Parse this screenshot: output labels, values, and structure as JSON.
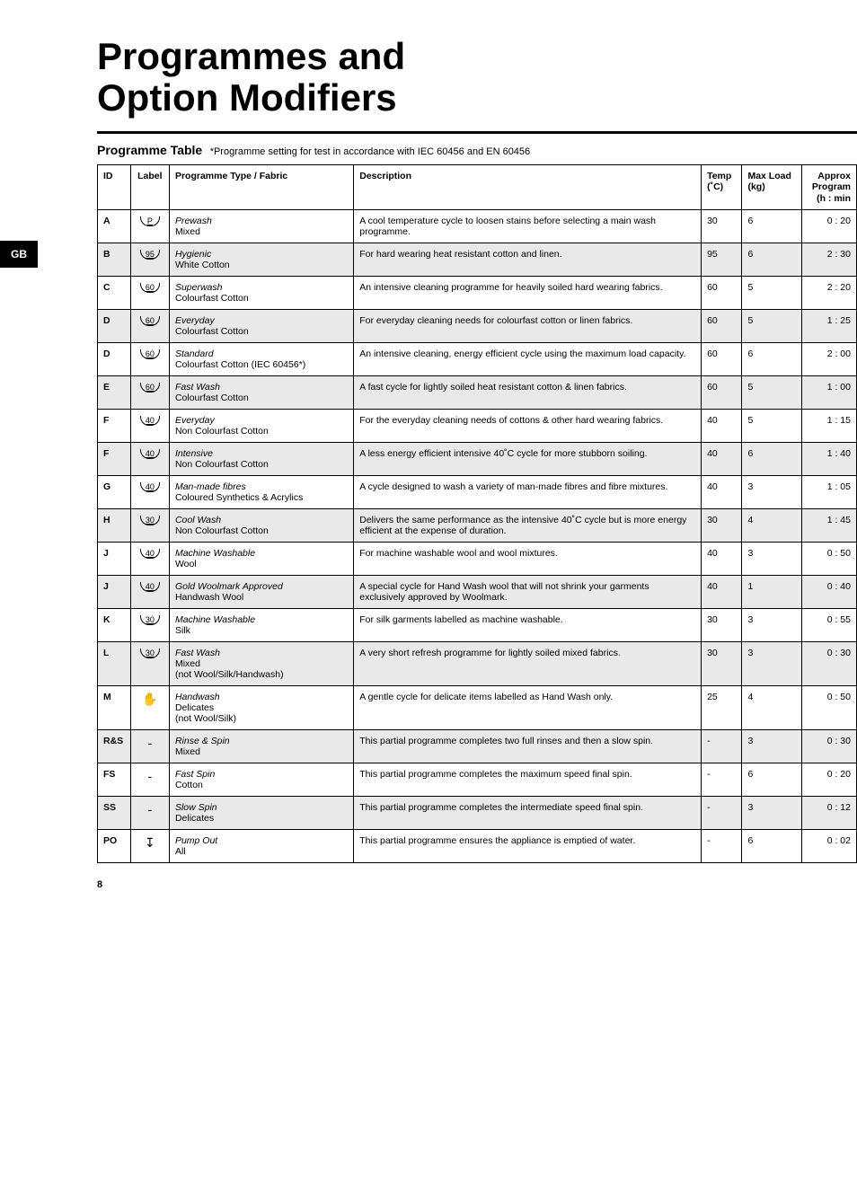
{
  "page_tab": "GB",
  "main_title_line1": "Programmes and",
  "main_title_line2": "Option Modifiers",
  "table_title": "Programme Table",
  "table_note": "*Programme setting for test in accordance with IEC 60456 and EN 60456",
  "headers": {
    "id": "ID",
    "label": "Label",
    "prog": "Programme Type / Fabric",
    "desc": "Description",
    "temp": "Temp (˚C)",
    "load": "Max Load (kg)",
    "time": "Approx Program (h : min"
  },
  "rows": [
    {
      "shaded": false,
      "id": "A",
      "label": "P",
      "prog_name": "Prewash",
      "prog_fabric": "Mixed",
      "desc": "A cool temperature cycle to loosen stains before selecting a main wash programme.",
      "temp": "30",
      "load": "6",
      "time": "0 : 20"
    },
    {
      "shaded": true,
      "id": "B",
      "label": "95",
      "prog_name": "Hygienic",
      "prog_fabric": "White Cotton",
      "desc": "For hard wearing heat resistant cotton and linen.",
      "temp": "95",
      "load": "6",
      "time": "2 : 30"
    },
    {
      "shaded": false,
      "id": "C",
      "label": "60",
      "prog_name": "Superwash",
      "prog_fabric": "Colourfast Cotton",
      "desc": "An intensive cleaning programme for heavily soiled hard wearing fabrics.",
      "temp": "60",
      "load": "5",
      "time": "2 : 20"
    },
    {
      "shaded": true,
      "id": "D",
      "label": "60",
      "prog_name": "Everyday",
      "prog_fabric": "Colourfast Cotton",
      "desc": "For everyday cleaning needs for colourfast cotton or linen fabrics.",
      "temp": "60",
      "load": "5",
      "time": "1 : 25"
    },
    {
      "shaded": false,
      "id": "D",
      "label": "60",
      "prog_name": "Standard",
      "prog_fabric": "Colourfast Cotton (IEC 60456*)",
      "desc": "An intensive cleaning, energy efficient cycle using the maximum load capacity.",
      "temp": "60",
      "load": "6",
      "time": "2 : 00"
    },
    {
      "shaded": true,
      "id": "E",
      "label": "60",
      "prog_name": "Fast Wash",
      "prog_fabric": "Colourfast Cotton",
      "desc": "A fast cycle for lightly soiled heat resistant cotton & linen fabrics.",
      "temp": "60",
      "load": "5",
      "time": "1 : 00"
    },
    {
      "shaded": false,
      "id": "F",
      "label": "40",
      "prog_name": "Everyday",
      "prog_fabric": "Non Colourfast Cotton",
      "desc": "For the everyday cleaning needs of cottons & other hard wearing fabrics.",
      "temp": "40",
      "load": "5",
      "time": "1 : 15"
    },
    {
      "shaded": true,
      "id": "F",
      "label": "40",
      "prog_name": "Intensive",
      "prog_fabric": "Non Colourfast Cotton",
      "desc": "A less energy efficient intensive 40˚C cycle for more stubborn soiling.",
      "temp": "40",
      "load": "6",
      "time": "1 : 40"
    },
    {
      "shaded": false,
      "id": "G",
      "label": "40",
      "prog_name": "Man-made fibres",
      "prog_fabric": "Coloured Synthetics & Acrylics",
      "desc": "A cycle designed to wash a variety of man-made fibres and fibre mixtures.",
      "temp": "40",
      "load": "3",
      "time": "1 : 05"
    },
    {
      "shaded": true,
      "id": "H",
      "label": "30",
      "prog_name": "Cool Wash",
      "prog_fabric": "Non Colourfast Cotton",
      "desc": "Delivers the same performance as the intensive 40˚C cycle but is more energy efficient at the expense of duration.",
      "temp": "30",
      "load": "4",
      "time": "1 : 45"
    },
    {
      "shaded": false,
      "id": "J",
      "label": "40",
      "prog_name": "Machine Washable",
      "prog_fabric": "Wool",
      "desc": "For machine washable wool and wool mixtures.",
      "temp": "40",
      "load": "3",
      "time": "0 : 50"
    },
    {
      "shaded": true,
      "id": "J",
      "label": "40",
      "prog_name": "Gold Woolmark Approved",
      "prog_fabric": "Handwash Wool",
      "desc": "A special cycle for Hand Wash wool that will not shrink your garments exclusively approved by Woolmark.",
      "temp": "40",
      "load": "1",
      "time": "0 : 40"
    },
    {
      "shaded": false,
      "id": "K",
      "label": "30",
      "prog_name": "Machine Washable",
      "prog_fabric": "Silk",
      "desc": "For silk garments labelled as machine washable.",
      "temp": "30",
      "load": "3",
      "time": "0 : 55"
    },
    {
      "shaded": true,
      "id": "L",
      "label": "30",
      "prog_name": "Fast Wash",
      "prog_fabric": "Mixed\n(not Wool/Silk/Handwash)",
      "desc": "A very short refresh programme for lightly soiled mixed fabrics.",
      "temp": "30",
      "load": "3",
      "time": "0 : 30"
    },
    {
      "shaded": false,
      "id": "M",
      "label": "✋",
      "label_nolabel": true,
      "prog_name": "Handwash",
      "prog_fabric": "Delicates\n(not Wool/Silk)",
      "desc": "A gentle cycle for delicate items labelled as Hand Wash only.",
      "temp": "25",
      "load": "4",
      "time": "0 : 50"
    },
    {
      "shaded": true,
      "id": "R&S",
      "label": "-",
      "label_nolabel": true,
      "prog_name": "Rinse & Spin",
      "prog_fabric": "Mixed",
      "desc": "This partial programme completes two full rinses and then a slow spin.",
      "temp": "-",
      "load": "3",
      "time": "0 : 30"
    },
    {
      "shaded": false,
      "id": "FS",
      "label": "-",
      "label_nolabel": true,
      "prog_name": "Fast Spin",
      "prog_fabric": "Cotton",
      "desc": "This partial programme completes the maximum speed final spin.",
      "temp": "-",
      "load": "6",
      "time": "0 : 20"
    },
    {
      "shaded": true,
      "id": "SS",
      "label": "-",
      "label_nolabel": true,
      "prog_name": "Slow Spin",
      "prog_fabric": "Delicates",
      "desc": "This partial programme completes the intermediate speed final spin.",
      "temp": "-",
      "load": "3",
      "time": "0 : 12"
    },
    {
      "shaded": false,
      "id": "PO",
      "label": "↧",
      "label_nolabel": true,
      "prog_name": "Pump Out",
      "prog_fabric": "All",
      "desc": "This partial programme ensures the appliance is emptied of water.",
      "temp": "-",
      "load": "6",
      "time": "0 : 02"
    }
  ],
  "page_number": "8"
}
